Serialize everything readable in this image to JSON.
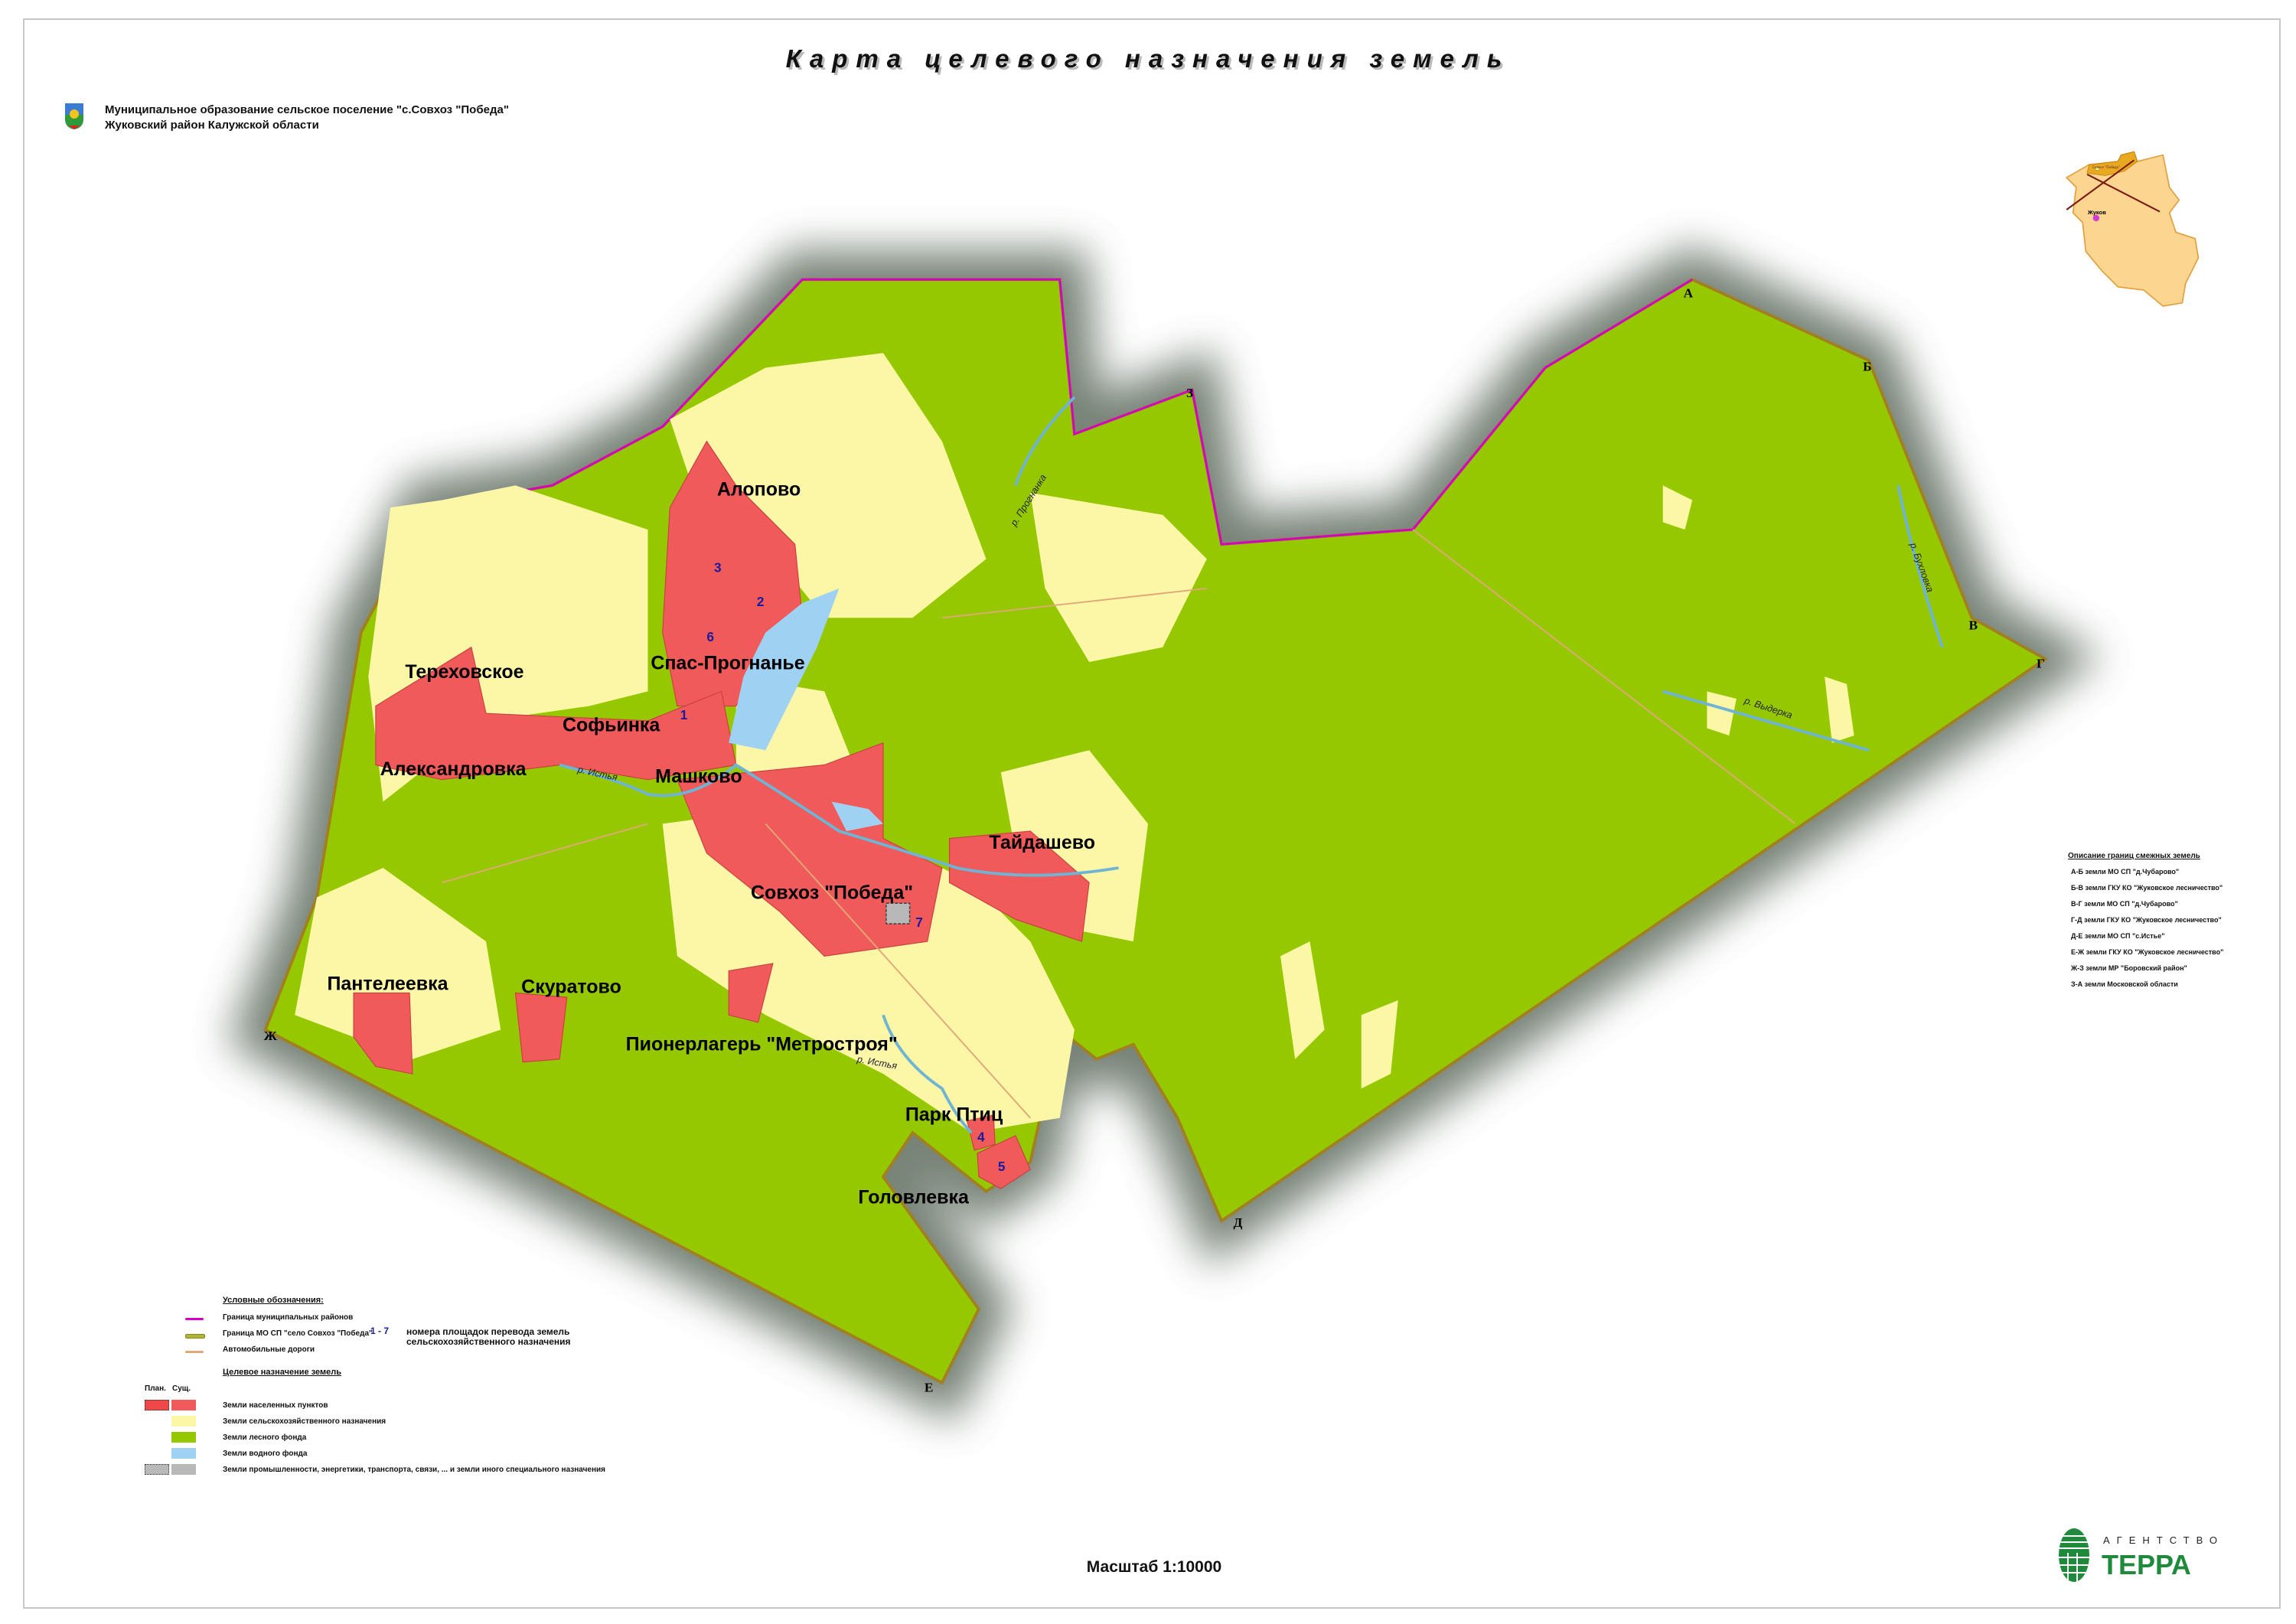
{
  "title": "Карта целевого назначения земель",
  "header": {
    "line1": "Муниципальное образование сельское поселение \"с.Совхоз \"Победа\"",
    "line2": "Жуковский район Калужской области"
  },
  "colors": {
    "settlement": "#f05a5a",
    "agricultural": "#fbf7a6",
    "forest": "#96c800",
    "water": "#9fd2f2",
    "industrial": "#b8b8b8",
    "district_border": "#d400c8",
    "mo_border": "#b0b23a",
    "roads": "#e0a878",
    "area_numbers": "#1a1aa0"
  },
  "villages": [
    "Алопово",
    "Тереховское",
    "Спас-Прогнанье",
    "Софьинка",
    "Александровка",
    "Машково",
    "Тайдашево",
    "Совхоз \"Победа\"",
    "Пантелеевка",
    "Скуратово",
    "Пионерлагерь \"Метростроя\"",
    "Парк Птиц",
    "Головлевка"
  ],
  "rivers": [
    "р. Прогнанка",
    "р. Бухловка",
    "р. Выдерка",
    "р. Истья",
    "р. Истья"
  ],
  "boundary_points": [
    "А",
    "Б",
    "В",
    "Г",
    "Д",
    "Е",
    "Ж",
    "З"
  ],
  "area_numbers": [
    "1",
    "2",
    "3",
    "4",
    "5",
    "6",
    "7"
  ],
  "legend": {
    "heading": "Условные обозначения:",
    "lines": [
      {
        "label": "Граница муниципальных районов"
      },
      {
        "label": "Граница МО СП \"село Совхоз \"Победа\""
      },
      {
        "label": "Автомобильные дороги"
      }
    ],
    "numbers_key": "1 - 7",
    "numbers_text1": "номера площадок перевода земель",
    "numbers_text2": "сельскохозяйственного назначения",
    "landuse_heading": "Целевое назначение земель",
    "col_plan": "План.",
    "col_exist": "Сущ.",
    "landuse": [
      {
        "label": "Земли населенных пунктов",
        "has_plan": true
      },
      {
        "label": "Земли сельскохозяйственного назначения",
        "has_plan": false
      },
      {
        "label": "Земли лесного фонда",
        "has_plan": false
      },
      {
        "label": "Земли водного фонда",
        "has_plan": false
      },
      {
        "label": "Земли промышленности, энергетики, транспорта, связи, ... и земли иного специального назначения",
        "has_plan": true
      }
    ]
  },
  "adjacent": {
    "heading": "Описание границ смежных земель",
    "items": [
      "А-Б земли МО СП \"д.Чубарово\"",
      "Б-В земли ГКУ КО \"Жуковское лесничество\"",
      "В-Г земли МО СП \"д.Чубарово\"",
      "Г-Д земли ГКУ КО \"Жуковское лесничество\"",
      "Д-Е земли МО СП \"с.Истье\"",
      "Е-Ж земли ГКУ КО \"Жуковское лесничество\"",
      "Ж-З земли МР \"Боровский район\"",
      "З-А земли Московской области"
    ]
  },
  "inset": {
    "settlement_label": "Совхоз \"Победа\"",
    "town_label": "Жуков"
  },
  "scale": "Масштаб 1:10000",
  "logo": {
    "top": "АГЕНТСТВО",
    "main": "ТЕРРА"
  }
}
